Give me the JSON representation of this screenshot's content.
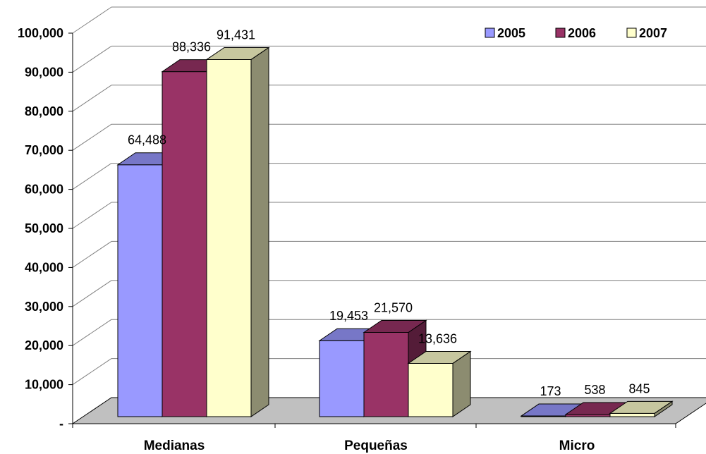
{
  "chart_data": {
    "type": "bar",
    "style": "3d-clustered-column",
    "categories": [
      "Medianas",
      "Pequeñas",
      "Micro"
    ],
    "series": [
      {
        "name": "2005",
        "values": [
          64488,
          19453,
          173
        ],
        "color": "#9999ff"
      },
      {
        "name": "2006",
        "values": [
          88336,
          21570,
          538
        ],
        "color": "#993366"
      },
      {
        "name": "2007",
        "values": [
          91431,
          13636,
          845
        ],
        "color": "#ffffcc"
      }
    ],
    "data_labels": [
      [
        "64,488",
        "19,453",
        "173"
      ],
      [
        "88,336",
        "21,570",
        "538"
      ],
      [
        "91,431",
        "13,636",
        "845"
      ]
    ],
    "y_ticks": [
      "-",
      "10,000",
      "20,000",
      "30,000",
      "40,000",
      "50,000",
      "60,000",
      "70,000",
      "80,000",
      "90,000",
      "100,000"
    ],
    "ylim": [
      0,
      100000
    ],
    "y_step": 10000,
    "grid": true,
    "legend_position": "top-right",
    "floor_color": "#c0c0c0",
    "gridline_color": "#808080",
    "title": "",
    "xlabel": "",
    "ylabel": ""
  }
}
